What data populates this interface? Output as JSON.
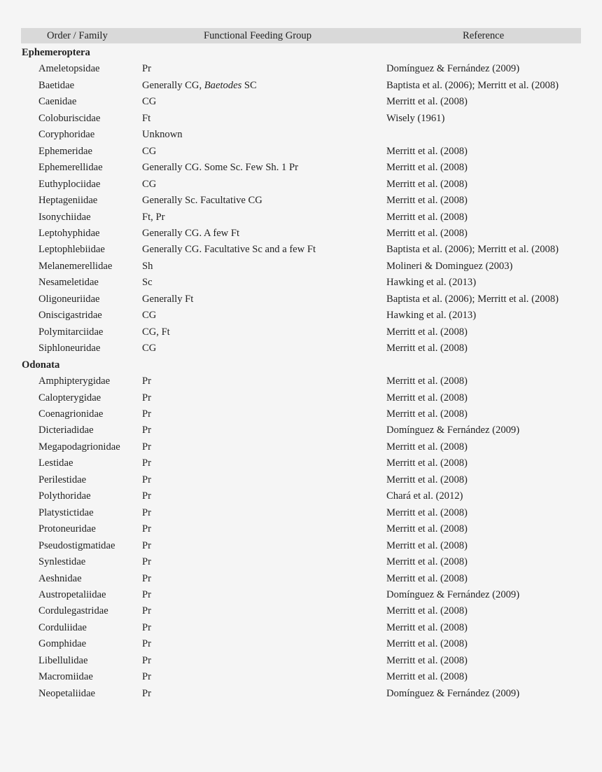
{
  "table": {
    "headers": [
      "Order / Family",
      "Functional Feeding Group",
      "Reference"
    ],
    "header_bg": "#d9d9d9",
    "orders": [
      {
        "name": "Ephemeroptera",
        "families": [
          {
            "family": "Ameletopsidae",
            "group": [
              "Pr"
            ],
            "reference": "Domínguez & Fernández (2009)"
          },
          {
            "family": "Baetidae",
            "group": [
              "Generally CG, ",
              "Baetodes",
              " SC"
            ],
            "group_italic_index": 1,
            "reference": "Baptista et al. (2006); Merritt et al. (2008)"
          },
          {
            "family": "Caenidae",
            "group": [
              "CG"
            ],
            "reference": "Merritt et al. (2008)"
          },
          {
            "family": "Coloburiscidae",
            "group": [
              "Ft"
            ],
            "reference": "Wisely (1961)"
          },
          {
            "family": "Coryphoridae",
            "group": [
              "Unknown"
            ],
            "reference": ""
          },
          {
            "family": "Ephemeridae",
            "group": [
              "CG"
            ],
            "reference": "Merritt et al. (2008)"
          },
          {
            "family": "Ephemerellidae",
            "group": [
              "Generally CG. Some Sc. Few Sh. 1 Pr"
            ],
            "reference": "Merritt et al. (2008)"
          },
          {
            "family": "Euthyplociidae",
            "group": [
              "CG"
            ],
            "reference": "Merritt et al. (2008)"
          },
          {
            "family": "Heptageniidae",
            "group": [
              "Generally Sc. Facultative CG"
            ],
            "reference": "Merritt et al. (2008)"
          },
          {
            "family": "Isonychiidae",
            "group": [
              "Ft, Pr"
            ],
            "reference": "Merritt et al. (2008)"
          },
          {
            "family": "Leptohyphidae",
            "group": [
              "Generally CG. A few Ft"
            ],
            "reference": "Merritt et al. (2008)"
          },
          {
            "family": "Leptophlebiidae",
            "group": [
              "Generally CG. Facultative Sc and a few Ft"
            ],
            "reference": "Baptista et al. (2006); Merritt et al. (2008)"
          },
          {
            "family": "Melanemerellidae",
            "group": [
              "Sh"
            ],
            "reference": "Molineri & Dominguez (2003)"
          },
          {
            "family": "Nesameletidae",
            "group": [
              "Sc"
            ],
            "reference": "Hawking et al. (2013)"
          },
          {
            "family": "Oligoneuriidae",
            "group": [
              "Generally Ft"
            ],
            "reference": "Baptista et al. (2006); Merritt et al. (2008)"
          },
          {
            "family": "Oniscigastridae",
            "group": [
              "CG"
            ],
            "reference": "Hawking et al. (2013)"
          },
          {
            "family": "Polymitarciidae",
            "group": [
              "CG, Ft"
            ],
            "reference": "Merritt et al. (2008)"
          },
          {
            "family": "Siphloneuridae",
            "group": [
              "CG"
            ],
            "reference": "Merritt et al. (2008)"
          }
        ]
      },
      {
        "name": "Odonata",
        "families": [
          {
            "family": "Amphipterygidae",
            "group": [
              "Pr"
            ],
            "reference": "Merritt et al. (2008)"
          },
          {
            "family": "Calopterygidae",
            "group": [
              "Pr"
            ],
            "reference": "Merritt et al. (2008)"
          },
          {
            "family": "Coenagrionidae",
            "group": [
              "Pr"
            ],
            "reference": "Merritt et al. (2008)"
          },
          {
            "family": "Dicteriadidae",
            "group": [
              "Pr"
            ],
            "reference": "Domínguez & Fernández (2009)"
          },
          {
            "family": "Megapodagrionidae",
            "group": [
              "Pr"
            ],
            "reference": "Merritt et al. (2008)"
          },
          {
            "family": "Lestidae",
            "group": [
              "Pr"
            ],
            "reference": "Merritt et al. (2008)"
          },
          {
            "family": "Perilestidae",
            "group": [
              "Pr"
            ],
            "reference": "Merritt et al. (2008)"
          },
          {
            "family": "Polythoridae",
            "group": [
              "Pr"
            ],
            "reference": "Chará et al. (2012)"
          },
          {
            "family": "Platystictidae",
            "group": [
              "Pr"
            ],
            "reference": "Merritt et al. (2008)"
          },
          {
            "family": "Protoneuridae",
            "group": [
              "Pr"
            ],
            "reference": "Merritt et al. (2008)"
          },
          {
            "family": "Pseudostigmatidae",
            "group": [
              "Pr"
            ],
            "reference": "Merritt et al. (2008)"
          },
          {
            "family": "Synlestidae",
            "group": [
              "Pr"
            ],
            "reference": "Merritt et al. (2008)"
          },
          {
            "family": "Aeshnidae",
            "group": [
              "Pr"
            ],
            "reference": "Merritt et al. (2008)"
          },
          {
            "family": "Austropetaliidae",
            "group": [
              "Pr"
            ],
            "reference": "Domínguez & Fernández (2009)"
          },
          {
            "family": "Cordulegastridae",
            "group": [
              "Pr"
            ],
            "reference": "Merritt et al. (2008)"
          },
          {
            "family": "Corduliidae",
            "group": [
              "Pr"
            ],
            "reference": "Merritt et al. (2008)"
          },
          {
            "family": "Gomphidae",
            "group": [
              "Pr"
            ],
            "reference": "Merritt et al. (2008)"
          },
          {
            "family": "Libellulidae",
            "group": [
              "Pr"
            ],
            "reference": "Merritt et al. (2008)"
          },
          {
            "family": "Macromiidae",
            "group": [
              "Pr"
            ],
            "reference": "Merritt et al. (2008)"
          },
          {
            "family": "Neopetaliidae",
            "group": [
              "Pr"
            ],
            "reference": "Domínguez & Fernández (2009)"
          }
        ]
      }
    ]
  }
}
